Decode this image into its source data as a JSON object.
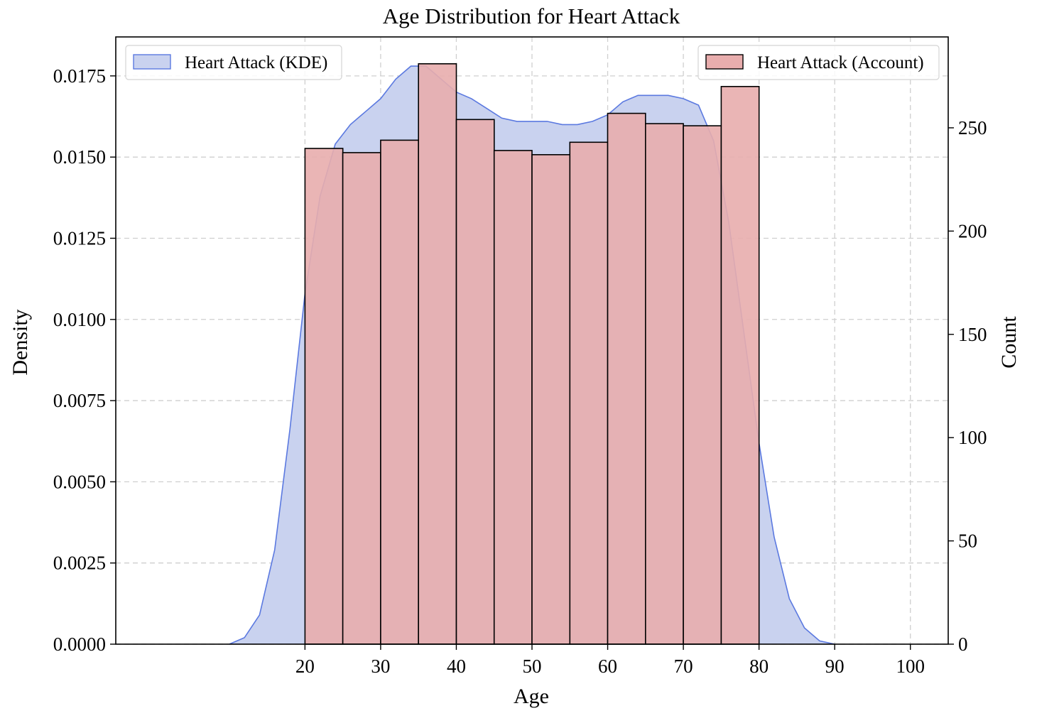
{
  "chart_data": {
    "type": "bar",
    "title": "Age Distribution for Heart Attack",
    "xlabel": "Age",
    "ylabel_left": "Density",
    "ylabel_right": "Count",
    "xlim": [
      -5,
      105
    ],
    "ylim_left": [
      0,
      0.0187
    ],
    "ylim_right": [
      0,
      294
    ],
    "xticks": [
      20,
      30,
      40,
      50,
      60,
      70,
      80,
      90,
      100
    ],
    "yticks_left": [
      "0.0000",
      "0.0025",
      "0.0050",
      "0.0075",
      "0.0100",
      "0.0125",
      "0.0150",
      "0.0175"
    ],
    "yticks_right": [
      0,
      50,
      100,
      150,
      200,
      250
    ],
    "grid": true,
    "histogram": {
      "name": "Heart Attack (Account)",
      "color": "#e8adad",
      "edge_color": "#000000",
      "bin_edges": [
        20,
        25,
        30,
        35,
        40,
        45,
        50,
        55,
        60,
        65,
        70,
        75,
        80
      ],
      "counts": [
        240,
        238,
        244,
        281,
        254,
        239,
        237,
        243,
        257,
        252,
        251,
        270
      ],
      "legend_position": "top-right"
    },
    "kde": {
      "name": "Heart Attack (KDE)",
      "fill_color": "#c9d2ef",
      "line_color": "#5b79e0",
      "x": [
        10,
        12,
        14,
        16,
        18,
        20,
        22,
        24,
        26,
        28,
        30,
        32,
        34,
        36,
        38,
        40,
        42,
        44,
        46,
        48,
        50,
        52,
        54,
        56,
        58,
        60,
        62,
        64,
        66,
        68,
        70,
        72,
        74,
        76,
        78,
        80,
        82,
        84,
        86,
        88,
        90
      ],
      "y": [
        0.0,
        0.0002,
        0.0009,
        0.0029,
        0.0066,
        0.0108,
        0.0138,
        0.0154,
        0.016,
        0.0164,
        0.0168,
        0.0174,
        0.0178,
        0.0178,
        0.0174,
        0.017,
        0.0168,
        0.0165,
        0.0162,
        0.0161,
        0.0161,
        0.0161,
        0.016,
        0.016,
        0.0161,
        0.0163,
        0.0167,
        0.0169,
        0.0169,
        0.0169,
        0.0168,
        0.0166,
        0.0155,
        0.013,
        0.0096,
        0.0062,
        0.0033,
        0.0014,
        0.0005,
        0.0001,
        0.0
      ],
      "legend_position": "top-left"
    }
  }
}
